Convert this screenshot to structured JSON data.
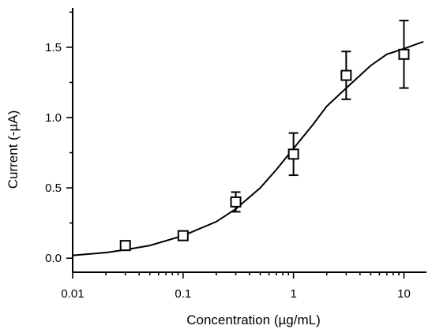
{
  "chart_data": {
    "type": "scatter",
    "xlabel": "Concentration (µg/mL)",
    "ylabel": "Current (-µA)",
    "x_scale": "log",
    "xlim": [
      0.01,
      16
    ],
    "ylim": [
      -0.1,
      1.78
    ],
    "x_ticks": [
      {
        "value": 0.01,
        "label": "0.01"
      },
      {
        "value": 0.1,
        "label": "0.1"
      },
      {
        "value": 1,
        "label": "1"
      },
      {
        "value": 10,
        "label": "10"
      }
    ],
    "y_ticks": [
      {
        "value": 0.0,
        "label": "0.0"
      },
      {
        "value": 0.5,
        "label": "0.5"
      },
      {
        "value": 1.0,
        "label": "1.0"
      },
      {
        "value": 1.5,
        "label": "1.5"
      }
    ],
    "grid": false,
    "legend": "none",
    "marker": "open-square",
    "points": [
      {
        "x": 0.03,
        "y": 0.09,
        "err": 0.02
      },
      {
        "x": 0.1,
        "y": 0.16,
        "err": 0.02
      },
      {
        "x": 0.3,
        "y": 0.4,
        "err": 0.07
      },
      {
        "x": 1.0,
        "y": 0.74,
        "err": 0.15
      },
      {
        "x": 3.0,
        "y": 1.3,
        "err": 0.17
      },
      {
        "x": 10.0,
        "y": 1.45,
        "err": 0.24
      }
    ],
    "fit_curve": [
      {
        "x": 0.01,
        "y": 0.02
      },
      {
        "x": 0.02,
        "y": 0.04
      },
      {
        "x": 0.03,
        "y": 0.06
      },
      {
        "x": 0.05,
        "y": 0.09
      },
      {
        "x": 0.1,
        "y": 0.16
      },
      {
        "x": 0.2,
        "y": 0.26
      },
      {
        "x": 0.3,
        "y": 0.35
      },
      {
        "x": 0.5,
        "y": 0.5
      },
      {
        "x": 0.7,
        "y": 0.63
      },
      {
        "x": 1.0,
        "y": 0.78
      },
      {
        "x": 1.5,
        "y": 0.95
      },
      {
        "x": 2.0,
        "y": 1.08
      },
      {
        "x": 3.0,
        "y": 1.21
      },
      {
        "x": 5.0,
        "y": 1.37
      },
      {
        "x": 7.0,
        "y": 1.45
      },
      {
        "x": 10.0,
        "y": 1.49
      },
      {
        "x": 15.0,
        "y": 1.54
      }
    ]
  }
}
